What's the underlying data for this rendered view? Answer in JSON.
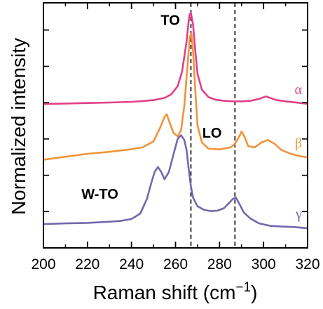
{
  "chart_data": {
    "type": "line",
    "xlabel": "Raman shift (cm",
    "xlabel_sup": "−1",
    "xlabel_close": ")",
    "ylabel": "Normalized intensity",
    "xlim": [
      200,
      320
    ],
    "ylim": [
      0,
      1
    ],
    "x_ticks": [
      200,
      220,
      240,
      260,
      280,
      300,
      320
    ],
    "x_tick_labels": [
      "200",
      "220",
      "240",
      "260",
      "280",
      "300",
      "320"
    ],
    "y_tick_labels": [],
    "vlines": [
      267,
      287
    ],
    "annotations": [
      {
        "text": "TO",
        "x": 262,
        "y": 0.93
      },
      {
        "text": "LO",
        "x": 281,
        "y": 0.47
      },
      {
        "text": "W-TO",
        "x": 234,
        "y": 0.22
      }
    ],
    "series": [
      {
        "name": "α",
        "color": "#e23f8a",
        "x": [
          200,
          210,
          220,
          230,
          240,
          245,
          250,
          255,
          258,
          261,
          263,
          265,
          266,
          266.5,
          267,
          268,
          269,
          270,
          272,
          275,
          278,
          282,
          286,
          290,
          294,
          298,
          301,
          303,
          306,
          310,
          314,
          320
        ],
        "y": [
          0.587,
          0.589,
          0.591,
          0.593,
          0.596,
          0.599,
          0.603,
          0.612,
          0.626,
          0.66,
          0.72,
          0.84,
          0.93,
          0.955,
          0.958,
          0.91,
          0.8,
          0.71,
          0.645,
          0.615,
          0.605,
          0.6,
          0.598,
          0.598,
          0.6,
          0.608,
          0.618,
          0.612,
          0.603,
          0.598,
          0.594,
          0.588
        ]
      },
      {
        "name": "β",
        "color": "#f0943a",
        "x": [
          200,
          210,
          220,
          230,
          240,
          245,
          250,
          253,
          255,
          256,
          257,
          259,
          261,
          262.5,
          264,
          265.5,
          266.5,
          267.2,
          268,
          269,
          270,
          272,
          275,
          280,
          285,
          287,
          289,
          290,
          291.5,
          293,
          296,
          299,
          302,
          305,
          308,
          312,
          316,
          320
        ],
        "y": [
          0.36,
          0.372,
          0.384,
          0.392,
          0.403,
          0.41,
          0.435,
          0.49,
          0.535,
          0.545,
          0.52,
          0.47,
          0.455,
          0.48,
          0.58,
          0.75,
          0.86,
          0.875,
          0.8,
          0.64,
          0.5,
          0.43,
          0.405,
          0.402,
          0.41,
          0.425,
          0.455,
          0.475,
          0.45,
          0.415,
          0.41,
          0.43,
          0.44,
          0.425,
          0.4,
          0.385,
          0.375,
          0.37
        ]
      },
      {
        "name": "γ",
        "color": "#7467ac",
        "x": [
          200,
          210,
          220,
          230,
          235,
          240,
          244,
          247,
          249,
          250.5,
          252,
          253.5,
          255,
          257,
          259,
          261,
          262.5,
          264,
          265,
          266,
          267,
          268,
          270,
          273,
          276,
          279,
          282,
          284,
          286,
          287.5,
          289,
          291,
          294,
          298,
          303,
          308,
          314,
          320
        ],
        "y": [
          0.097,
          0.1,
          0.102,
          0.107,
          0.11,
          0.118,
          0.14,
          0.2,
          0.265,
          0.31,
          0.33,
          0.31,
          0.28,
          0.31,
          0.38,
          0.445,
          0.46,
          0.44,
          0.4,
          0.32,
          0.25,
          0.205,
          0.17,
          0.155,
          0.15,
          0.152,
          0.162,
          0.18,
          0.2,
          0.205,
          0.18,
          0.145,
          0.12,
          0.1,
          0.09,
          0.087,
          0.085,
          0.08
        ]
      }
    ]
  }
}
